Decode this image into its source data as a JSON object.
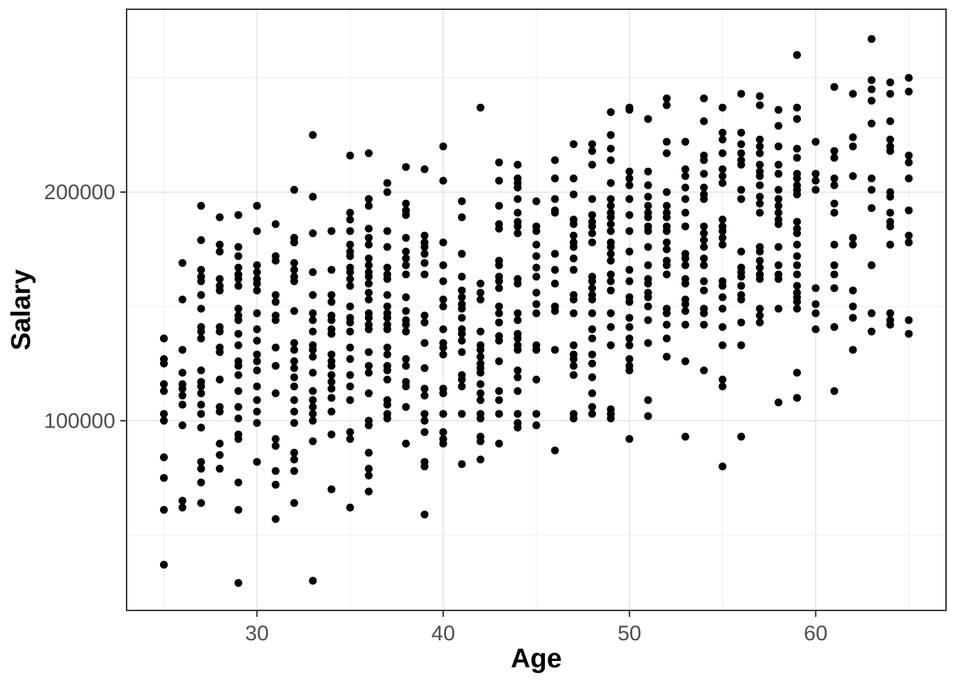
{
  "chart_data": {
    "type": "scatter",
    "title": "",
    "xlabel": "Age",
    "ylabel": "Salary",
    "xlim": [
      23,
      67
    ],
    "ylim": [
      17000,
      280000
    ],
    "x_major_ticks": [
      30,
      40,
      50,
      60
    ],
    "x_minor_ticks": [
      25,
      35,
      45,
      55,
      65
    ],
    "y_major_ticks": [
      100000,
      200000
    ],
    "y_minor_ticks": [
      50000,
      150000,
      250000
    ],
    "grid": "on",
    "legend": "none",
    "point_color": "#000000",
    "panel_border_color": "#333333",
    "major_grid_color": "#e5e5e5",
    "minor_grid_color": "#f0f0f0",
    "tick_label_color": "#4d4d4d",
    "points_by_age": {
      "25": [
        136000,
        127000,
        125000,
        116000,
        113000,
        103000,
        100000,
        84000,
        75000,
        61000,
        37000
      ],
      "26": [
        169000,
        153000,
        131000,
        121000,
        116000,
        114000,
        111000,
        107000,
        98000,
        65000,
        62000
      ],
      "27": [
        194000,
        179000,
        166000,
        163000,
        161000,
        155000,
        149000,
        141000,
        139000,
        136000,
        122000,
        117000,
        115000,
        112000,
        107000,
        103000,
        97000,
        82000,
        79000,
        73000,
        64000
      ],
      "28": [
        189000,
        177000,
        174000,
        162000,
        159000,
        157000,
        141000,
        139000,
        132000,
        130000,
        118000,
        106000,
        104000,
        90000,
        85000,
        79000
      ],
      "29": [
        190000,
        176000,
        172000,
        167000,
        164000,
        162000,
        159000,
        149000,
        146000,
        144000,
        138000,
        133000,
        126000,
        124000,
        120000,
        113000,
        106000,
        101000,
        94000,
        92000,
        73000,
        61000,
        29000
      ],
      "30": [
        194000,
        183000,
        168000,
        165000,
        162000,
        160000,
        157000,
        147000,
        140000,
        135000,
        129000,
        126000,
        122000,
        115000,
        109000,
        104000,
        99000,
        82000
      ],
      "31": [
        186000,
        172000,
        170000,
        155000,
        152000,
        146000,
        144000,
        132000,
        124000,
        112000,
        92000,
        89000,
        78000,
        72000,
        57000
      ],
      "32": [
        201000,
        180000,
        178000,
        169000,
        166000,
        163000,
        161000,
        148000,
        134000,
        131000,
        126000,
        123000,
        119000,
        115000,
        109000,
        104000,
        99000,
        86000,
        83000,
        78000,
        64000
      ],
      "33": [
        225000,
        198000,
        182000,
        165000,
        155000,
        147000,
        144000,
        139000,
        133000,
        131000,
        128000,
        121000,
        113000,
        109000,
        106000,
        103000,
        100000,
        91000,
        30000
      ],
      "34": [
        183000,
        166000,
        155000,
        152000,
        146000,
        144000,
        140000,
        138000,
        129000,
        126000,
        124000,
        120000,
        117000,
        114000,
        110000,
        104000,
        94000,
        70000
      ],
      "35": [
        216000,
        191000,
        188000,
        183000,
        177000,
        174000,
        172000,
        167000,
        165000,
        162000,
        159000,
        150000,
        145000,
        143000,
        139000,
        132000,
        127000,
        120000,
        115000,
        109000,
        95000,
        92000,
        62000
      ],
      "36": [
        217000,
        197000,
        194000,
        184000,
        180000,
        177000,
        171000,
        168000,
        165000,
        163000,
        160000,
        156000,
        153000,
        147000,
        145000,
        142000,
        140000,
        130000,
        124000,
        121000,
        112000,
        100000,
        98000,
        86000,
        79000,
        76000,
        69000
      ],
      "37": [
        204000,
        200000,
        183000,
        176000,
        167000,
        164000,
        162000,
        155000,
        150000,
        147000,
        145000,
        142000,
        140000,
        132000,
        129000,
        124000,
        122000,
        118000,
        109000,
        107000,
        103000,
        101000
      ],
      "38": [
        211000,
        195000,
        192000,
        190000,
        180000,
        174000,
        171000,
        168000,
        164000,
        154000,
        148000,
        144000,
        142000,
        139000,
        127000,
        124000,
        117000,
        115000,
        106000,
        90000
      ],
      "39": [
        210000,
        181000,
        178000,
        176000,
        173000,
        169000,
        164000,
        146000,
        143000,
        134000,
        123000,
        114000,
        111000,
        103000,
        100000,
        95000,
        82000,
        80000,
        59000
      ],
      "40": [
        220000,
        205000,
        178000,
        168000,
        161000,
        153000,
        150000,
        140000,
        134000,
        132000,
        129000,
        114000,
        112000,
        103000,
        95000,
        92000,
        90000
      ],
      "41": [
        196000,
        189000,
        173000,
        163000,
        157000,
        154000,
        151000,
        149000,
        145000,
        140000,
        138000,
        135000,
        130000,
        120000,
        118000,
        115000,
        103000,
        81000
      ],
      "42": [
        237000,
        160000,
        156000,
        153000,
        139000,
        133000,
        131000,
        128000,
        125000,
        123000,
        121000,
        116000,
        112000,
        109000,
        103000,
        101000,
        93000,
        91000,
        83000
      ],
      "43": [
        213000,
        205000,
        194000,
        186000,
        184000,
        170000,
        168000,
        163000,
        161000,
        158000,
        150000,
        147000,
        143000,
        137000,
        135000,
        126000,
        113000,
        109000,
        103000,
        90000
      ],
      "44": [
        212000,
        206000,
        204000,
        202000,
        197000,
        191000,
        187000,
        185000,
        182000,
        162000,
        160000,
        147000,
        144000,
        138000,
        136000,
        133000,
        131000,
        122000,
        119000,
        113000,
        103000,
        99000,
        97000
      ],
      "45": [
        196000,
        185000,
        183000,
        177000,
        172000,
        167000,
        163000,
        156000,
        151000,
        147000,
        133000,
        131000,
        118000,
        103000,
        98000
      ],
      "46": [
        214000,
        206000,
        197000,
        192000,
        191000,
        173000,
        166000,
        160000,
        150000,
        148000,
        131000,
        87000
      ],
      "47": [
        221000,
        206000,
        199000,
        188000,
        186000,
        181000,
        178000,
        176000,
        171000,
        166000,
        155000,
        153000,
        147000,
        133000,
        129000,
        127000,
        124000,
        120000,
        103000,
        101000
      ],
      "48": [
        221000,
        218000,
        212000,
        197000,
        190000,
        187000,
        185000,
        182000,
        178000,
        163000,
        161000,
        158000,
        155000,
        153000,
        147000,
        140000,
        136000,
        129000,
        125000,
        119000,
        112000,
        106000,
        103000
      ],
      "49": [
        235000,
        225000,
        219000,
        214000,
        204000,
        197000,
        194000,
        191000,
        189000,
        186000,
        183000,
        178000,
        176000,
        173000,
        170000,
        164000,
        161000,
        157000,
        147000,
        141000,
        133000,
        105000,
        103000,
        101000
      ],
      "50": [
        237000,
        236000,
        209000,
        206000,
        203000,
        197000,
        190000,
        183000,
        174000,
        166000,
        161000,
        154000,
        152000,
        145000,
        141000,
        136000,
        133000,
        127000,
        124000,
        122000,
        92000
      ],
      "51": [
        232000,
        209000,
        203000,
        198000,
        194000,
        191000,
        189000,
        185000,
        183000,
        176000,
        168000,
        162000,
        160000,
        156000,
        154000,
        150000,
        144000,
        134000,
        109000,
        102000
      ],
      "52": [
        241000,
        238000,
        222000,
        217000,
        200000,
        194000,
        191000,
        189000,
        185000,
        183000,
        178000,
        175000,
        170000,
        168000,
        164000,
        149000,
        147000,
        142000,
        136000,
        128000
      ],
      "53": [
        222000,
        210000,
        207000,
        202000,
        197000,
        191000,
        185000,
        173000,
        171000,
        168000,
        162000,
        160000,
        153000,
        151000,
        148000,
        142000,
        126000,
        93000
      ],
      "54": [
        241000,
        231000,
        216000,
        214000,
        208000,
        202000,
        199000,
        197000,
        185000,
        182000,
        179000,
        176000,
        171000,
        168000,
        161000,
        157000,
        149000,
        147000,
        142000,
        122000
      ],
      "55": [
        237000,
        226000,
        223000,
        217000,
        210000,
        207000,
        204000,
        188000,
        185000,
        183000,
        180000,
        177000,
        161000,
        159000,
        154000,
        149000,
        141000,
        133000,
        118000,
        115000,
        80000
      ],
      "56": [
        243000,
        226000,
        221000,
        217000,
        214000,
        212000,
        201000,
        197000,
        174000,
        167000,
        165000,
        163000,
        159000,
        155000,
        153000,
        143000,
        133000,
        93000
      ],
      "57": [
        242000,
        238000,
        223000,
        220000,
        217000,
        212000,
        209000,
        207000,
        203000,
        198000,
        195000,
        191000,
        176000,
        174000,
        170000,
        167000,
        164000,
        162000,
        149000,
        146000,
        143000
      ],
      "58": [
        236000,
        229000,
        220000,
        212000,
        208000,
        201000,
        197000,
        194000,
        191000,
        188000,
        186000,
        176000,
        168000,
        164000,
        162000,
        149000,
        108000
      ],
      "59": [
        260000,
        237000,
        232000,
        219000,
        215000,
        208000,
        206000,
        203000,
        201000,
        199000,
        187000,
        184000,
        182000,
        177000,
        172000,
        168000,
        164000,
        159000,
        156000,
        154000,
        152000,
        149000,
        121000,
        110000
      ],
      "60": [
        222000,
        208000,
        205000,
        201000,
        158000,
        151000,
        147000,
        140000
      ],
      "61": [
        246000,
        218000,
        215000,
        206000,
        203000,
        195000,
        191000,
        177000,
        168000,
        164000,
        158000,
        141000,
        113000
      ],
      "62": [
        243000,
        224000,
        220000,
        207000,
        180000,
        177000,
        157000,
        150000,
        145000,
        131000
      ],
      "63": [
        267000,
        249000,
        245000,
        240000,
        230000,
        206000,
        201000,
        193000,
        168000,
        147000,
        139000
      ],
      "64": [
        248000,
        243000,
        231000,
        223000,
        220000,
        218000,
        200000,
        198000,
        191000,
        187000,
        185000,
        177000,
        147000,
        144000,
        142000
      ],
      "65": [
        250000,
        244000,
        216000,
        213000,
        206000,
        192000,
        181000,
        178000,
        144000,
        138000
      ]
    }
  }
}
